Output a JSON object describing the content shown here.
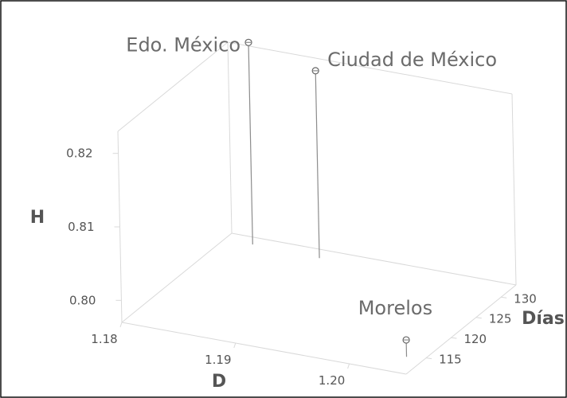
{
  "chart_data": {
    "type": "scatter",
    "title": "",
    "axes": {
      "x": {
        "label": "D",
        "ticks": [
          "1.18",
          "1.19",
          "1.20"
        ],
        "range": [
          1.18,
          1.205
        ]
      },
      "y": {
        "label": "Días",
        "ticks": [
          "115",
          "120",
          "125",
          "130"
        ],
        "range": [
          111,
          133
        ]
      },
      "z": {
        "label": "H",
        "ticks": [
          "0.80",
          "0.81",
          "0.82"
        ],
        "range": [
          0.797,
          0.823
        ]
      }
    },
    "grid": false,
    "points": [
      {
        "name": "Edo. México",
        "x": 1.1825,
        "y": 131.5,
        "z": 0.8245
      },
      {
        "name": "Ciudad de México",
        "x": 1.1885,
        "y": 131.2,
        "z": 0.8225
      },
      {
        "name": "Morelos",
        "x": 1.2035,
        "y": 114.5,
        "z": 0.7993
      }
    ]
  }
}
